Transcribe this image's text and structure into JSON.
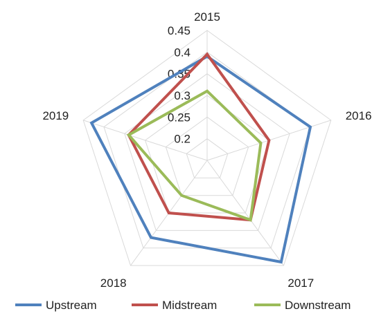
{
  "chart_data": {
    "type": "radar",
    "title": "",
    "categories": [
      "2015",
      "2016",
      "2017",
      "2018",
      "2019"
    ],
    "rlim": [
      0.15,
      0.45
    ],
    "ticks": [
      0.2,
      0.25,
      0.3,
      0.35,
      0.4,
      0.45
    ],
    "tick_labels": [
      "0.2",
      "0.25",
      "0.3",
      "0.35",
      "0.4",
      "0.45"
    ],
    "grid": true,
    "legend_position": "bottom",
    "series": [
      {
        "name": "Upstream",
        "color": "#4f81bd",
        "values": [
          0.39,
          0.4,
          0.44,
          0.37,
          0.43
        ]
      },
      {
        "name": "Midstream",
        "color": "#c0504d",
        "values": [
          0.395,
          0.3,
          0.32,
          0.3,
          0.34
        ]
      },
      {
        "name": "Downstream",
        "color": "#9bbb59",
        "values": [
          0.31,
          0.28,
          0.32,
          0.25,
          0.34
        ]
      }
    ]
  }
}
